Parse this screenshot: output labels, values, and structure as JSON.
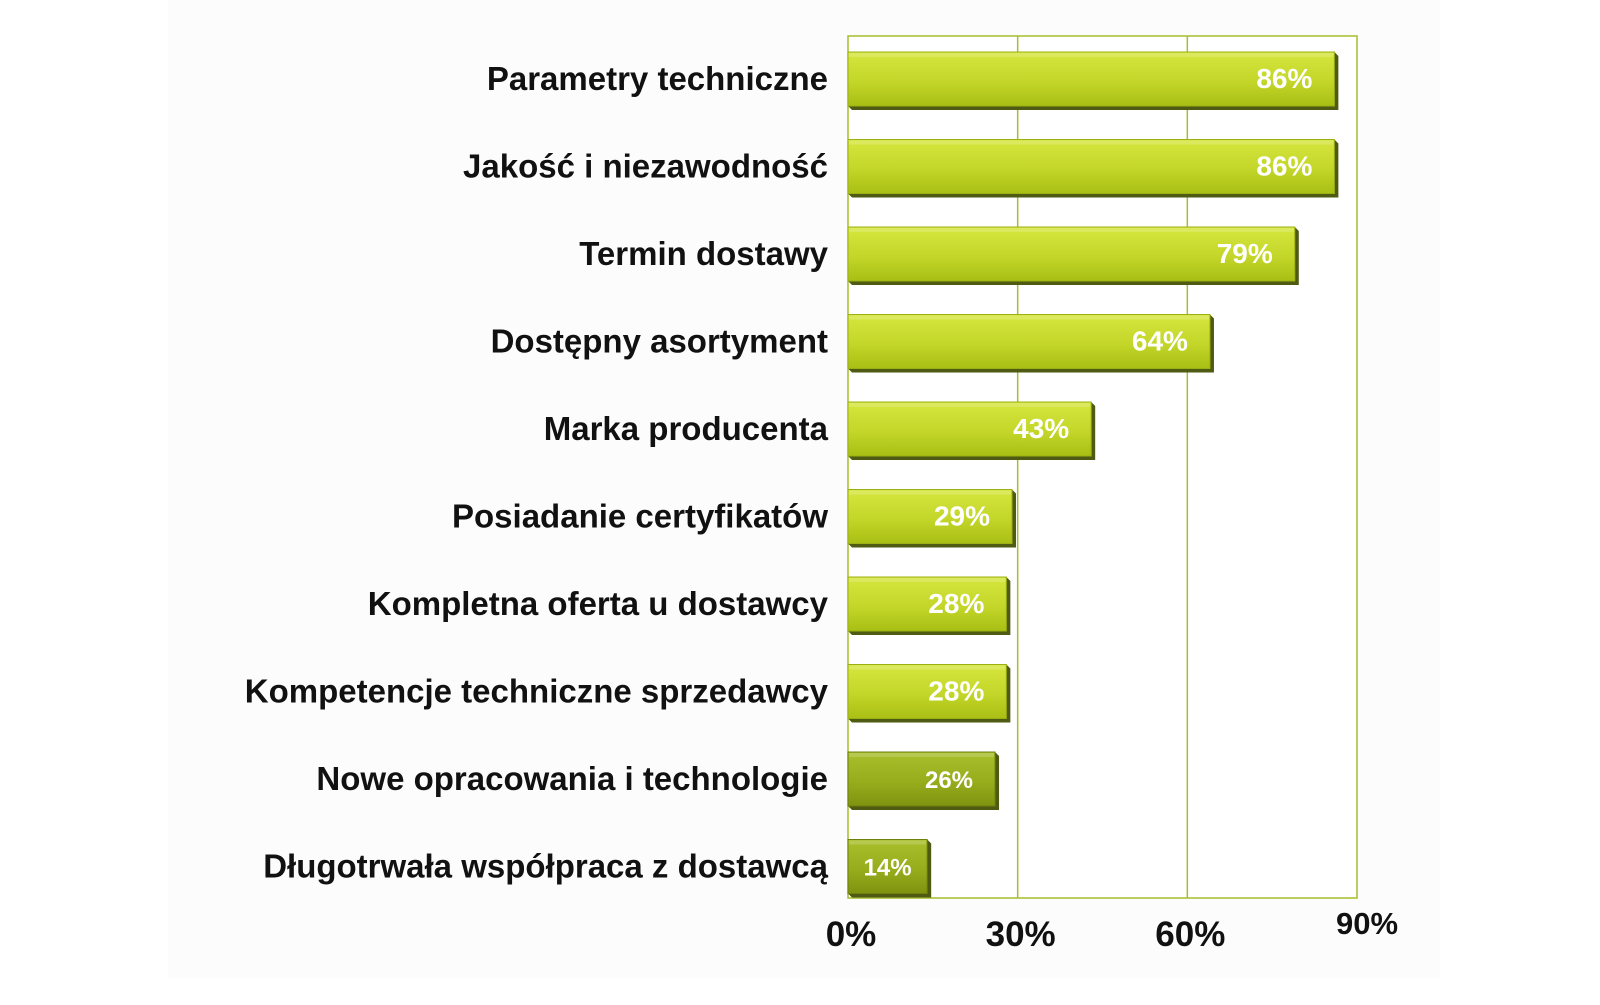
{
  "chart_data": {
    "type": "bar",
    "orientation": "horizontal",
    "categories": [
      "Parametry techniczne",
      "Jakość i niezawodność",
      "Termin dostawy",
      "Dostępny asortyment",
      "Marka producenta",
      "Posiadanie certyfikatów",
      "Kompletna oferta u dostawcy",
      "Kompetencje techniczne sprzedawcy",
      "Nowe opracowania i technologie",
      "Długotrwała współpraca z dostawcą"
    ],
    "values": [
      86,
      86,
      79,
      64,
      43,
      29,
      28,
      28,
      26,
      14
    ],
    "data_labels": [
      "86%",
      "86%",
      "79%",
      "64%",
      "43%",
      "29%",
      "28%",
      "28%",
      "26%",
      "14%"
    ],
    "xlim": [
      0,
      90
    ],
    "x_ticks": [
      0,
      30,
      60,
      90
    ],
    "x_tick_labels": [
      "0%",
      "30%",
      "60%",
      "90%"
    ],
    "title": "",
    "xlabel": "",
    "ylabel": "",
    "grid": "vertical",
    "legend": "none",
    "colors": {
      "bar_light": "#c6d92a",
      "bar_mid": "#b3c81b",
      "bar_dark": "#8ea30a",
      "bar_olive": "#93a81a",
      "bar_shadow": "#4f5a12",
      "frame": "#a4bf2c",
      "label_text": "#111111",
      "value_text": "#ffffff",
      "plot_bg": "#fcfcfc"
    }
  }
}
